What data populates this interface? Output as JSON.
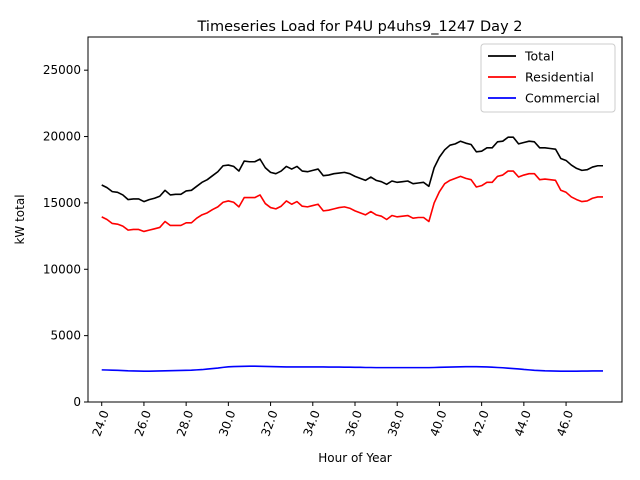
{
  "chart_data": {
    "type": "line",
    "title": "Timeseries Load for P4U p4uhs9_1247  Day 2",
    "xlabel": "Hour of Year",
    "ylabel": "kW total",
    "xlim": [
      23.35,
      48.65
    ],
    "ylim": [
      0,
      27500
    ],
    "xticks": [
      24,
      26,
      28,
      30,
      32,
      34,
      36,
      38,
      40,
      42,
      44,
      46
    ],
    "xtick_labels": [
      "24.0",
      "26.0",
      "28.0",
      "30.0",
      "32.0",
      "34.0",
      "36.0",
      "38.0",
      "40.0",
      "42.0",
      "44.0",
      "46.0"
    ],
    "yticks": [
      0,
      5000,
      10000,
      15000,
      20000,
      25000
    ],
    "ytick_labels": [
      "0",
      "5000",
      "10000",
      "15000",
      "20000",
      "25000"
    ],
    "legend_position": "top-right",
    "series": [
      {
        "name": "Total",
        "color": "#000000",
        "x": [
          24.0,
          24.25,
          24.5,
          24.75,
          25.0,
          25.25,
          25.5,
          25.75,
          26.0,
          26.25,
          26.5,
          26.75,
          27.0,
          27.25,
          27.5,
          27.75,
          28.0,
          28.25,
          28.5,
          28.75,
          29.0,
          29.25,
          29.5,
          29.75,
          30.0,
          30.25,
          30.5,
          30.75,
          31.0,
          31.25,
          31.5,
          31.75,
          32.0,
          32.25,
          32.5,
          32.75,
          33.0,
          33.25,
          33.5,
          33.75,
          34.0,
          34.25,
          34.5,
          34.75,
          35.0,
          35.25,
          35.5,
          35.75,
          36.0,
          36.25,
          36.5,
          36.75,
          37.0,
          37.25,
          37.5,
          37.75,
          38.0,
          38.25,
          38.5,
          38.75,
          39.0,
          39.25,
          39.5,
          39.75,
          40.0,
          40.25,
          40.5,
          40.75,
          41.0,
          41.25,
          41.5,
          41.75,
          42.0,
          42.25,
          42.5,
          42.75,
          43.0,
          43.25,
          43.5,
          43.75,
          44.0,
          44.25,
          44.5,
          44.75,
          45.0,
          45.25,
          45.5,
          45.75,
          46.0,
          46.25,
          46.5,
          46.75,
          47.0,
          47.25,
          47.5,
          47.75
        ],
        "values": [
          16350,
          16150,
          15850,
          15800,
          15600,
          15250,
          15300,
          15300,
          15100,
          15250,
          15350,
          15500,
          15950,
          15600,
          15650,
          15650,
          15900,
          15950,
          16250,
          16550,
          16750,
          17050,
          17350,
          17800,
          17850,
          17750,
          17400,
          18150,
          18100,
          18100,
          18300,
          17650,
          17300,
          17200,
          17400,
          17750,
          17550,
          17750,
          17400,
          17350,
          17450,
          17550,
          17050,
          17100,
          17200,
          17250,
          17300,
          17200,
          17000,
          16850,
          16700,
          16950,
          16700,
          16600,
          16400,
          16650,
          16550,
          16600,
          16650,
          16450,
          16500,
          16550,
          16250,
          17650,
          18450,
          19000,
          19350,
          19450,
          19650,
          19500,
          19400,
          18850,
          18900,
          19150,
          19150,
          19600,
          19650,
          19950,
          19950,
          19450,
          19550,
          19650,
          19600,
          19150,
          19150,
          19100,
          19050,
          18350,
          18200,
          17850,
          17600,
          17450,
          17500,
          17700,
          17800,
          17800
        ]
      },
      {
        "name": "Residential",
        "color": "#ff0000",
        "x": [
          24.0,
          24.25,
          24.5,
          24.75,
          25.0,
          25.25,
          25.5,
          25.75,
          26.0,
          26.25,
          26.5,
          26.75,
          27.0,
          27.25,
          27.5,
          27.75,
          28.0,
          28.25,
          28.5,
          28.75,
          29.0,
          29.25,
          29.5,
          29.75,
          30.0,
          30.25,
          30.5,
          30.75,
          31.0,
          31.25,
          31.5,
          31.75,
          32.0,
          32.25,
          32.5,
          32.75,
          33.0,
          33.25,
          33.5,
          33.75,
          34.0,
          34.25,
          34.5,
          34.75,
          35.0,
          35.25,
          35.5,
          35.75,
          36.0,
          36.25,
          36.5,
          36.75,
          37.0,
          37.25,
          37.5,
          37.75,
          38.0,
          38.25,
          38.5,
          38.75,
          39.0,
          39.25,
          39.5,
          39.75,
          40.0,
          40.25,
          40.5,
          40.75,
          41.0,
          41.25,
          41.5,
          41.75,
          42.0,
          42.25,
          42.5,
          42.75,
          43.0,
          43.25,
          43.5,
          43.75,
          44.0,
          44.25,
          44.5,
          44.75,
          45.0,
          45.25,
          45.5,
          45.75,
          46.0,
          46.25,
          46.5,
          46.75,
          47.0,
          47.25,
          47.5,
          47.75
        ],
        "values": [
          13950,
          13750,
          13450,
          13400,
          13250,
          12950,
          13000,
          13000,
          12850,
          12950,
          13050,
          13150,
          13600,
          13300,
          13300,
          13300,
          13500,
          13500,
          13850,
          14100,
          14250,
          14500,
          14700,
          15050,
          15150,
          15050,
          14700,
          15400,
          15400,
          15400,
          15600,
          14950,
          14650,
          14550,
          14750,
          15150,
          14900,
          15100,
          14750,
          14700,
          14800,
          14900,
          14400,
          14450,
          14550,
          14650,
          14700,
          14600,
          14400,
          14250,
          14100,
          14350,
          14100,
          14000,
          13750,
          14050,
          13950,
          14000,
          14050,
          13850,
          13900,
          13900,
          13600,
          15000,
          15850,
          16450,
          16700,
          16850,
          17000,
          16850,
          16750,
          16200,
          16300,
          16550,
          16550,
          17000,
          17100,
          17400,
          17400,
          16950,
          17100,
          17200,
          17200,
          16750,
          16800,
          16750,
          16700,
          15950,
          15800,
          15450,
          15250,
          15100,
          15150,
          15350,
          15450,
          15450
        ]
      },
      {
        "name": "Commercial",
        "color": "#0000ff",
        "x": [
          24.0,
          24.25,
          24.5,
          24.75,
          25.0,
          25.25,
          25.5,
          25.75,
          26.0,
          26.25,
          26.5,
          26.75,
          27.0,
          27.25,
          27.5,
          27.75,
          28.0,
          28.25,
          28.5,
          28.75,
          29.0,
          29.25,
          29.5,
          29.75,
          30.0,
          30.25,
          30.5,
          30.75,
          31.0,
          31.25,
          31.5,
          31.75,
          32.0,
          32.25,
          32.5,
          32.75,
          33.0,
          33.25,
          33.5,
          33.75,
          34.0,
          34.25,
          34.5,
          34.75,
          35.0,
          35.25,
          35.5,
          35.75,
          36.0,
          36.25,
          36.5,
          36.75,
          37.0,
          37.25,
          37.5,
          37.75,
          38.0,
          38.25,
          38.5,
          38.75,
          39.0,
          39.25,
          39.5,
          39.75,
          40.0,
          40.25,
          40.5,
          40.75,
          41.0,
          41.25,
          41.5,
          41.75,
          42.0,
          42.25,
          42.5,
          42.75,
          43.0,
          43.25,
          43.5,
          43.75,
          44.0,
          44.25,
          44.5,
          44.75,
          45.0,
          45.25,
          45.5,
          45.75,
          46.0,
          46.25,
          46.5,
          46.75,
          47.0,
          47.25,
          47.5,
          47.75
        ],
        "values": [
          2420,
          2410,
          2400,
          2390,
          2370,
          2350,
          2340,
          2330,
          2320,
          2320,
          2330,
          2340,
          2350,
          2360,
          2370,
          2380,
          2390,
          2400,
          2420,
          2440,
          2480,
          2520,
          2560,
          2610,
          2650,
          2670,
          2680,
          2690,
          2700,
          2700,
          2690,
          2680,
          2670,
          2660,
          2650,
          2640,
          2640,
          2640,
          2640,
          2640,
          2640,
          2640,
          2640,
          2630,
          2630,
          2630,
          2620,
          2620,
          2610,
          2610,
          2600,
          2600,
          2590,
          2590,
          2590,
          2590,
          2590,
          2590,
          2590,
          2590,
          2590,
          2590,
          2590,
          2600,
          2610,
          2620,
          2630,
          2640,
          2650,
          2660,
          2660,
          2660,
          2650,
          2640,
          2620,
          2600,
          2580,
          2550,
          2520,
          2490,
          2450,
          2420,
          2390,
          2370,
          2350,
          2340,
          2330,
          2320,
          2320,
          2320,
          2320,
          2330,
          2330,
          2340,
          2340,
          2340
        ]
      }
    ]
  }
}
